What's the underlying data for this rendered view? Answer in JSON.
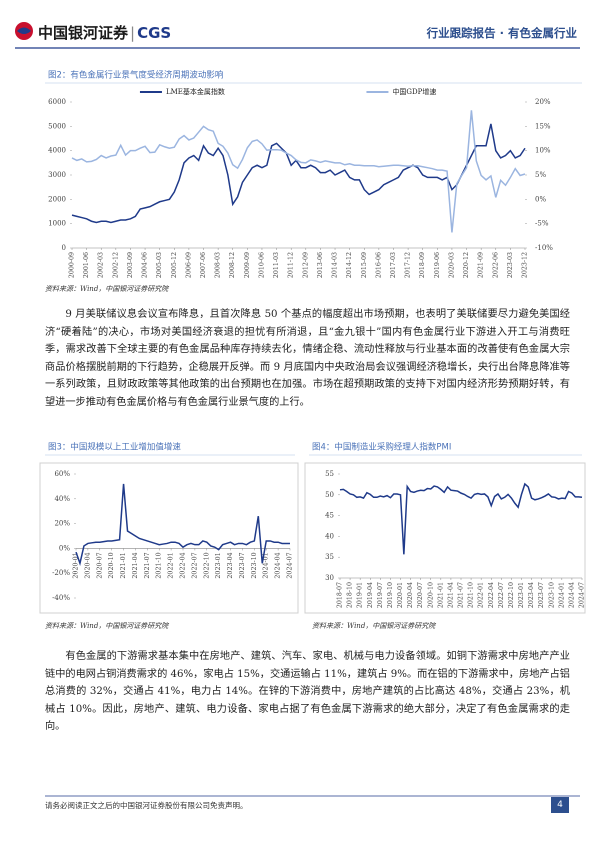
{
  "header": {
    "logo": "中国银河证券",
    "logo_en": "CGS",
    "right": "行业跟踪报告 · 有色金属行业"
  },
  "chart_data": [
    {
      "type": "line",
      "title": "图2：有色金属行业景气度受经济周期波动影响",
      "source": "资料来源：Wind，中国银河证券研究院",
      "legend": "top",
      "categories": [
        "2000-09",
        null,
        null,
        "2001-06",
        null,
        null,
        "2002-03",
        null,
        null,
        "2002-12",
        null,
        null,
        "2003-09",
        null,
        null,
        "2004-06",
        null,
        null,
        "2005-03",
        null,
        null,
        "2005-12",
        null,
        null,
        "2006-09",
        null,
        null,
        "2007-06",
        null,
        null,
        "2008-03",
        null,
        null,
        "2008-12",
        null,
        null,
        "2009-09",
        null,
        null,
        "2010-06",
        null,
        null,
        "2011-03",
        null,
        null,
        "2011-12",
        null,
        null,
        "2012-09",
        null,
        null,
        "2013-06",
        null,
        null,
        "2014-03",
        null,
        null,
        "2014-12",
        null,
        null,
        "2015-09",
        null,
        null,
        "2016-06",
        null,
        null,
        "2017-03",
        null,
        null,
        "2017-12",
        null,
        null,
        "2018-09",
        null,
        null,
        "2019-06",
        null,
        null,
        "2020-03",
        null,
        null,
        "2020-12",
        null,
        null,
        "2021-09",
        null,
        null,
        "2022-06",
        null,
        null,
        "2023-03",
        null,
        null,
        "2023-12"
      ],
      "series": [
        {
          "name": "LME基本金属指数",
          "color": "#1f3a8a",
          "values": [
            1350,
            1300,
            1250,
            1200,
            1100,
            1050,
            1100,
            1100,
            1050,
            1100,
            1150,
            1150,
            1200,
            1300,
            1600,
            1650,
            1700,
            1800,
            1900,
            1950,
            2000,
            2300,
            2800,
            3500,
            3700,
            3800,
            3600,
            4200,
            3900,
            3800,
            4100,
            3800,
            3000,
            1800,
            2100,
            2700,
            3000,
            3300,
            3400,
            3300,
            3400,
            4200,
            4300,
            4100,
            3900,
            3400,
            3600,
            3300,
            3300,
            3400,
            3300,
            3100,
            3100,
            3200,
            3000,
            3100,
            3200,
            2900,
            2800,
            2800,
            2400,
            2200,
            2300,
            2400,
            2600,
            2700,
            2800,
            2900,
            3200,
            3300,
            3400,
            3300,
            3000,
            2900,
            2900,
            2900,
            2800,
            2900,
            2400,
            2600,
            3000,
            3400,
            3800,
            4200,
            4200,
            4200,
            5100,
            4000,
            3700,
            3800,
            4000,
            3700,
            3800,
            4100
          ]
        },
        {
          "name": "中国GDP增速",
          "color": "#9bb5e0",
          "axis": "y2",
          "values": [
            8.5,
            8.0,
            8.3,
            7.7,
            7.8,
            8.2,
            9.0,
            8.5,
            8.9,
            9.1,
            11.1,
            9.1,
            10.0,
            10.0,
            10.5,
            10.9,
            9.6,
            9.7,
            11.2,
            10.8,
            10.5,
            10.7,
            12.4,
            13.1,
            12.2,
            12.6,
            13.8,
            15.0,
            14.3,
            14.0,
            11.5,
            10.9,
            9.5,
            7.1,
            6.4,
            8.2,
            10.6,
            11.9,
            12.2,
            11.4,
            10.1,
            10.2,
            10.2,
            10.1,
            9.5,
            9.0,
            8.1,
            7.6,
            7.5,
            8.1,
            7.9,
            7.6,
            7.9,
            7.7,
            7.5,
            7.5,
            7.1,
            7.3,
            7.0,
            7.0,
            6.9,
            6.9,
            6.9,
            6.7,
            6.8,
            6.9,
            7.0,
            7.0,
            6.9,
            6.8,
            6.9,
            6.9,
            6.7,
            6.5,
            6.3,
            6.0,
            6.0,
            5.8,
            -6.8,
            3.2,
            4.9,
            6.5,
            18.3,
            7.9,
            4.9,
            4.0,
            4.8,
            0.4,
            3.9,
            2.9,
            4.5,
            6.3,
            4.9,
            5.2
          ]
        }
      ],
      "ylim": [
        0,
        6000
      ],
      "yticks": [
        0,
        1000,
        2000,
        3000,
        4000,
        5000,
        6000
      ],
      "y2lim": [
        -10,
        20
      ],
      "y2ticks": [
        {
          "value": -10,
          "label": "-10%"
        },
        {
          "value": -5,
          "label": "-5%"
        },
        {
          "value": 0,
          "label": "0%"
        },
        {
          "value": 5,
          "label": "5%"
        },
        {
          "value": 10,
          "label": "10%"
        },
        {
          "value": 15,
          "label": "15%"
        },
        {
          "value": 20,
          "label": "20%"
        }
      ]
    },
    {
      "type": "line",
      "title": "图3：中国规模以上工业增加值增速",
      "source": "资料来源：Wind，中国银河证券研究院",
      "color": "#1f3a8a",
      "categories": [
        "2020-01",
        null,
        null,
        "2020-04",
        null,
        null,
        "2020-07",
        null,
        null,
        "2020-10",
        null,
        null,
        "2021-01",
        null,
        null,
        "2021-04",
        null,
        null,
        "2021-07",
        null,
        null,
        "2021-10",
        null,
        null,
        "2022-01",
        null,
        null,
        "2022-04",
        null,
        null,
        "2022-07",
        null,
        null,
        "2022-10",
        null,
        null,
        "2023-01",
        null,
        null,
        "2023-04",
        null,
        null,
        "2023-07",
        null,
        null,
        "2023-10",
        null,
        null,
        "2024-01",
        null,
        null,
        "2024-04",
        null,
        null,
        "2024-07"
      ],
      "values": [
        -3,
        -12,
        2,
        4,
        4.5,
        5,
        5,
        5.5,
        6,
        6,
        6.5,
        7,
        52,
        14,
        12,
        10,
        8,
        7,
        6,
        5,
        4,
        3,
        3.5,
        4,
        5,
        5,
        4,
        1,
        3,
        4,
        3,
        3,
        6,
        5,
        2,
        1,
        -1,
        3,
        4,
        5,
        3,
        4,
        4,
        3,
        5,
        6,
        26,
        -12,
        6,
        6,
        5,
        5,
        4,
        4,
        4
      ],
      "ylim": [
        -40,
        60
      ],
      "yticks": [
        {
          "value": -40,
          "label": "-40%"
        },
        {
          "value": -20,
          "label": "-20%"
        },
        {
          "value": 0,
          "label": "0%"
        },
        {
          "value": 20,
          "label": "20%"
        },
        {
          "value": 40,
          "label": "40%"
        },
        {
          "value": 60,
          "label": "60%"
        }
      ]
    },
    {
      "type": "line",
      "title": "图4：中国制造业采购经理人指数PMI",
      "source": "资料来源：Wind，中国银河证券研究院",
      "color": "#1f3a8a",
      "categories": [
        "2018-07",
        null,
        null,
        "2018-10",
        null,
        null,
        "2019-01",
        null,
        null,
        "2019-04",
        null,
        null,
        "2019-07",
        null,
        null,
        "2019-10",
        null,
        null,
        "2020-01",
        null,
        null,
        "2020-04",
        null,
        null,
        "2020-07",
        null,
        null,
        "2020-10",
        null,
        null,
        "2021-01",
        null,
        null,
        "2021-04",
        null,
        null,
        "2021-07",
        null,
        null,
        "2021-10",
        null,
        null,
        "2022-01",
        null,
        null,
        "2022-04",
        null,
        null,
        "2022-07",
        null,
        null,
        "2022-10",
        null,
        null,
        "2023-01",
        null,
        null,
        "2023-04",
        null,
        null,
        "2023-07",
        null,
        null,
        "2023-10",
        null,
        null,
        "2024-01",
        null,
        null,
        "2024-04",
        null,
        null,
        "2024-07"
      ],
      "values": [
        51.2,
        51.3,
        50.8,
        50.2,
        50.0,
        49.4,
        49.5,
        49.2,
        50.5,
        50.1,
        49.4,
        49.4,
        49.7,
        49.5,
        49.8,
        49.3,
        50.2,
        50.2,
        50.0,
        35.7,
        52.0,
        50.8,
        50.6,
        50.9,
        51.1,
        51.0,
        51.5,
        51.4,
        52.1,
        51.9,
        51.3,
        50.6,
        51.9,
        51.1,
        51.0,
        50.9,
        50.4,
        50.1,
        49.6,
        49.2,
        50.1,
        50.3,
        50.1,
        50.2,
        49.5,
        47.4,
        49.6,
        50.2,
        49.0,
        49.4,
        50.1,
        49.2,
        48.0,
        47.0,
        50.1,
        52.6,
        51.9,
        49.2,
        48.8,
        49.0,
        49.3,
        49.7,
        50.2,
        49.5,
        49.4,
        49.0,
        49.2,
        49.1,
        50.8,
        50.4,
        49.5,
        49.5,
        49.4
      ],
      "ylim": [
        30,
        55
      ],
      "yticks": [
        30,
        35,
        40,
        45,
        50,
        55
      ]
    }
  ],
  "paragraphs": [
    "9 月美联储议息会议宣布降息，且首次降息 50 个基点的幅度超出市场预期，也表明了美联储要尽力避免美国经济“硬着陆”的决心，市场对美国经济衰退的担忧有所消退，且“金九银十”国内有色金属行业下游进入开工与消费旺季，需求改善下全球主要的有色金属品种库存持续去化，情绪企稳、流动性释放与行业基本面的改善使有色金属大宗商品价格摆脱前期的下行趋势，企稳展开反弹。而 9 月底国内中央政治局会议强调经济稳增长，央行出台降息降准等一系列政策，且财政政策等其他政策的出台预期也在加强。市场在超预期政策的支持下对国内经济形势预期好转，有望进一步推动有色金属价格与有色金属行业景气度的上行。",
    "有色金属的下游需求基本集中在房地产、建筑、汽车、家电、机械与电力设备领域。如铜下游需求中房地产产业链中的电网占铜消费需求的 46%，家电占 15%，交通运输占 11%，建筑占 9%。而在铝的下游需求中，房地产占铝总消费的 32%，交通占 41%，电力占 14%。在锌的下游消费中，房地产建筑的占比高达 48%，交通占 23%，机械占 10%。因此，房地产、建筑、电力设备、家电占据了有色金属下游需求的绝大部分，决定了有色金属需求的走向。"
  ],
  "footer": {
    "disclaimer": "请务必阅读正文之后的中国银河证券股份有限公司免责声明。",
    "page": "4"
  }
}
